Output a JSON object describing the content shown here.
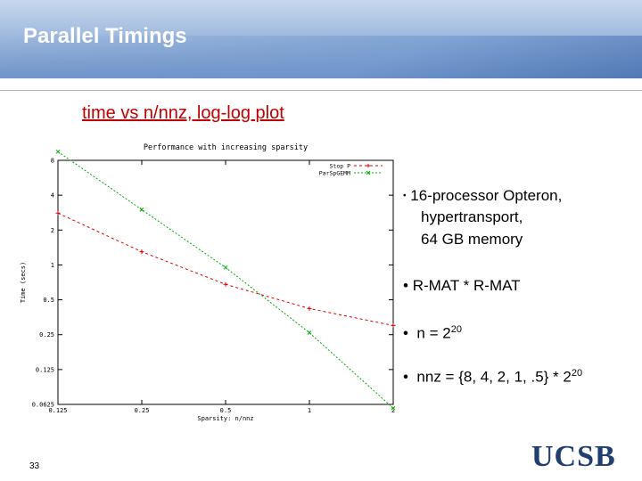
{
  "slide": {
    "title": "Parallel Timings",
    "subtitle": "time vs n/nnz, log-log plot",
    "page_number": "33",
    "logo_text": "UCSB"
  },
  "bullets": {
    "b1_line1": "16-processor Opteron,",
    "b1_line2": "hypertransport,",
    "b1_line3": "64 GB memory",
    "b2": "R-MAT * R-MAT",
    "b3_prefix": "n = 2",
    "b3_exp": "20",
    "b4_prefix": "nnz = {8, 4, 2, 1, .5} * 2",
    "b4_exp": "20"
  },
  "chart_data": {
    "type": "line",
    "title": "Performance with increasing sparsity",
    "xlabel": "Sparsity: n/nnz",
    "ylabel": "Time (secs)",
    "xscale": "log2",
    "yscale": "log2",
    "xlim": [
      0.125,
      2
    ],
    "ylim": [
      0.0625,
      8
    ],
    "x_ticks": [
      0.125,
      0.25,
      0.5,
      1,
      2
    ],
    "x_tick_labels": [
      "0.125",
      "0.25",
      "0.5",
      "1",
      "2"
    ],
    "y_ticks": [
      8,
      4,
      2,
      1,
      0.5,
      0.25,
      0.125,
      0.0625
    ],
    "y_tick_labels": [
      "8",
      "4",
      "2",
      "1",
      "0.5",
      "0.25",
      "0.125",
      "0.0625"
    ],
    "legend_position": "top-right",
    "grid": false,
    "series": [
      {
        "name": "Stop P",
        "color": "#dd0000",
        "dash": "3,3",
        "marker": "plus",
        "x": [
          0.125,
          0.25,
          0.5,
          1,
          2
        ],
        "y": [
          2.8,
          1.3,
          0.68,
          0.42,
          0.3
        ]
      },
      {
        "name": "ParSpGEMM",
        "color": "#00aa00",
        "dash": "2,2",
        "marker": "cross",
        "x": [
          0.125,
          0.25,
          0.5,
          1,
          2
        ],
        "y": [
          9.5,
          3.0,
          0.95,
          0.26,
          0.058
        ]
      }
    ]
  }
}
